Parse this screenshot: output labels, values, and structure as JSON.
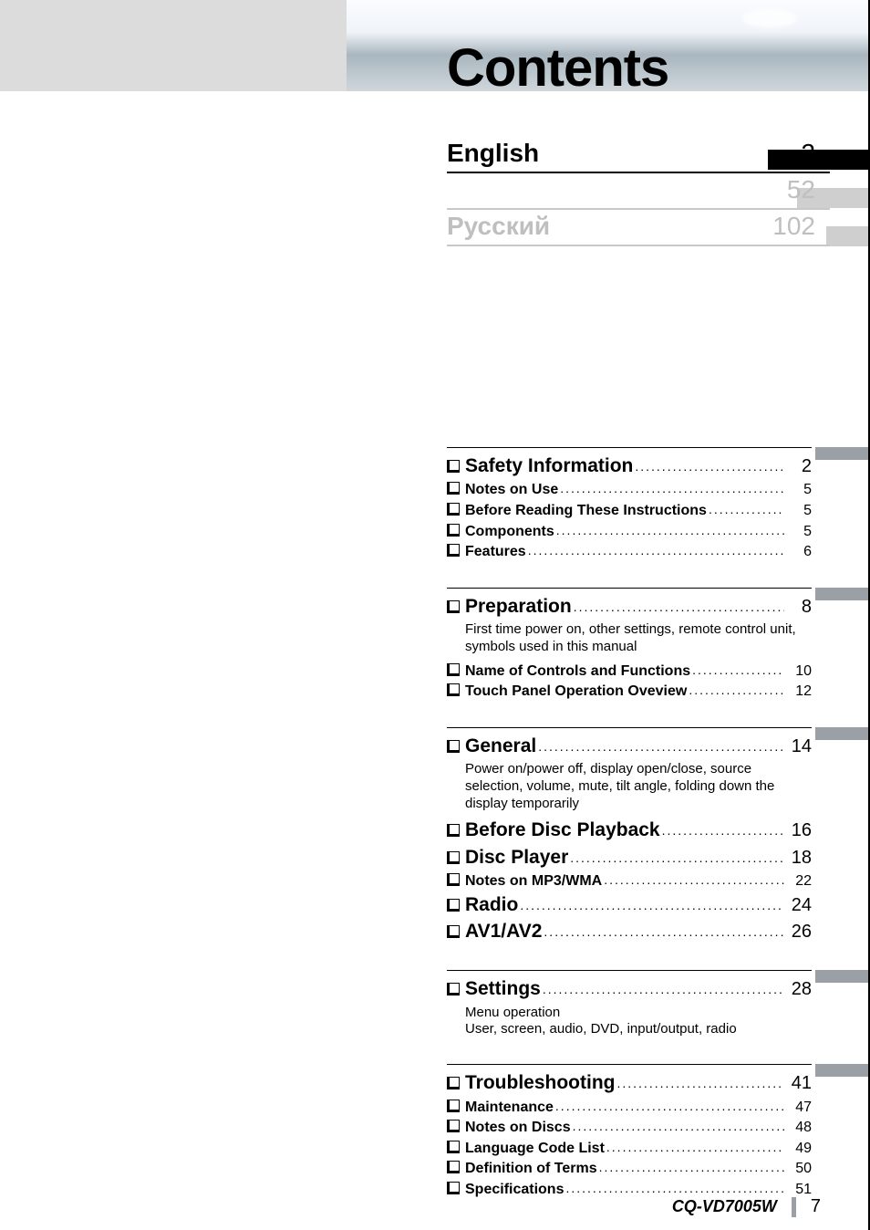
{
  "colors": {
    "left_band": "#dcdcdc",
    "stub_active": "#000000",
    "stub_inactive": "#cfcfcf",
    "section_stub": "#9aa0a6",
    "faded_text": "#bfbfbf",
    "rule": "#000000"
  },
  "title": "Contents",
  "languages": [
    {
      "name": "English",
      "page": "2",
      "active": true
    },
    {
      "name": "",
      "page": "52",
      "active": false
    },
    {
      "name": "Русский",
      "page": "102",
      "active": false
    }
  ],
  "sections": [
    {
      "items": [
        {
          "label": "Safety Information",
          "page": "2",
          "size": "big"
        },
        {
          "label": "Notes on Use",
          "page": "5",
          "size": "sm"
        },
        {
          "label": "Before Reading These Instructions",
          "page": "5",
          "size": "sm"
        },
        {
          "label": "Components",
          "page": "5",
          "size": "sm"
        },
        {
          "label": "Features",
          "page": "6",
          "size": "sm"
        }
      ]
    },
    {
      "items": [
        {
          "label": "Preparation",
          "page": "8",
          "size": "big",
          "desc": "First time power on, other settings, remote control unit, symbols used in this manual"
        },
        {
          "label": "Name of Controls and Functions",
          "page": "10",
          "size": "sm"
        },
        {
          "label": "Touch Panel Operation Oveview",
          "page": "12",
          "size": "sm"
        }
      ]
    },
    {
      "items": [
        {
          "label": "General",
          "page": "14",
          "size": "big",
          "desc": "Power on/power off, display open/close, source selection, volume, mute, tilt angle, folding down the display temporarily"
        },
        {
          "label": "Before Disc Playback",
          "page": "16",
          "size": "big"
        },
        {
          "label": "Disc Player",
          "page": "18",
          "size": "big"
        },
        {
          "label": "Notes on MP3/WMA",
          "page": "22",
          "size": "sm"
        },
        {
          "label": "Radio",
          "page": "24",
          "size": "big"
        },
        {
          "label": "AV1/AV2",
          "page": "26",
          "size": "big"
        }
      ]
    },
    {
      "items": [
        {
          "label": "Settings",
          "page": "28",
          "size": "big",
          "desc": "Menu operation\nUser, screen, audio, DVD, input/output, radio"
        }
      ]
    },
    {
      "items": [
        {
          "label": "Troubleshooting",
          "page": "41",
          "size": "big"
        },
        {
          "label": "Maintenance",
          "page": "47",
          "size": "sm"
        },
        {
          "label": "Notes on Discs",
          "page": "48",
          "size": "sm"
        },
        {
          "label": "Language Code List",
          "page": "49",
          "size": "sm"
        },
        {
          "label": "Definition of Terms",
          "page": "50",
          "size": "sm"
        },
        {
          "label": "Specifications",
          "page": "51",
          "size": "sm"
        }
      ]
    }
  ],
  "footer": {
    "model": "CQ-VD7005W",
    "page": "7"
  }
}
